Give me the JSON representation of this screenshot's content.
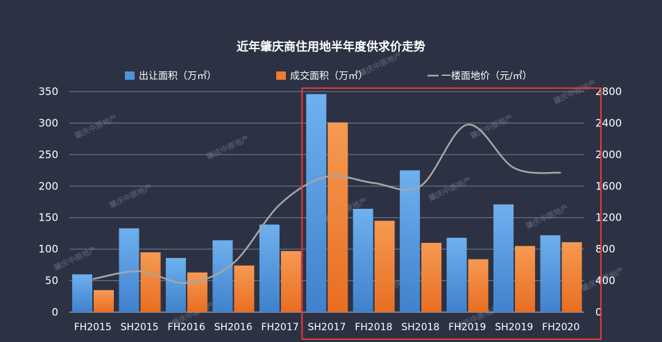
{
  "chart_data": {
    "type": "bar",
    "title": "近年肇庆商住用地半年度供求价走势",
    "categories": [
      "FH2015",
      "SH2015",
      "FH2016",
      "SH2016",
      "FH2017",
      "SH2017",
      "FH2018",
      "SH2018",
      "FH2019",
      "SH2019",
      "FH2020"
    ],
    "series": [
      {
        "name": "出让面积（万㎡）",
        "type": "bar",
        "axis": "left",
        "color": "#4f93d8",
        "values": [
          60,
          133,
          86,
          114,
          139,
          346,
          164,
          225,
          118,
          171,
          122
        ]
      },
      {
        "name": "成交面积（万㎡）",
        "type": "bar",
        "axis": "left",
        "color": "#ed7d31",
        "values": [
          35,
          95,
          63,
          74,
          97,
          301,
          145,
          110,
          84,
          105,
          111
        ]
      },
      {
        "name": "一楼面地价（元/㎡）",
        "type": "line",
        "axis": "right",
        "color": "#a6a6a6",
        "values": [
          420,
          520,
          370,
          620,
          1370,
          1720,
          1640,
          1600,
          2380,
          1830,
          1770
        ]
      }
    ],
    "left_axis": {
      "ylim": [
        0,
        350
      ],
      "ticks": [
        "0",
        "50",
        "100",
        "150",
        "200",
        "250",
        "300",
        "350"
      ]
    },
    "right_axis": {
      "ylim": [
        0,
        2800
      ],
      "ticks": [
        "0",
        "400",
        "800",
        "1200",
        "1600",
        "2000",
        "2400",
        "2800"
      ]
    },
    "grid": true,
    "legend_position": "top",
    "highlight": {
      "from_category": "SH2017",
      "to_category": "FH2020",
      "color": "#e8393a"
    },
    "watermark_text": "肇庆中原地产"
  }
}
